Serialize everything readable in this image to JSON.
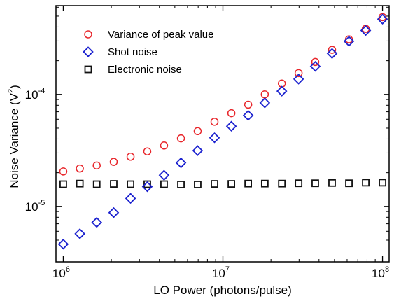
{
  "chart_data": {
    "type": "scatter",
    "xlabel": "LO Power (photons/pulse)",
    "ylabel": "Noise Variance (V",
    "ylabel_sup": "2",
    "ylabel_end": ")",
    "x_scale": "log",
    "y_scale": "log",
    "xlim": [
      900000,
      110000000
    ],
    "ylim": [
      3.2e-06,
      0.00062
    ],
    "x_ticks": [
      {
        "base": "10",
        "exp": "6",
        "value": 1000000
      },
      {
        "base": "10",
        "exp": "7",
        "value": 10000000
      },
      {
        "base": "10",
        "exp": "8",
        "value": 100000000
      }
    ],
    "y_ticks": [
      {
        "base": "10",
        "exp": "-5",
        "value": 1e-05
      },
      {
        "base": "10",
        "exp": "-4",
        "value": 0.0001
      }
    ],
    "grid": false,
    "legend_position": "top-left",
    "x": [
      1000000,
      1270000,
      1620000,
      2070000,
      2640000,
      3360000,
      4280000,
      5460000,
      6950000,
      8860000,
      11300000,
      14400000,
      18300000,
      23400000,
      29800000,
      37900000,
      48300000,
      61600000,
      78500000,
      100000000
    ],
    "series": [
      {
        "name": "Variance of peak value",
        "marker": "circle",
        "color": "#e8262b",
        "values": [
          2.05e-05,
          2.18e-05,
          2.32e-05,
          2.5e-05,
          2.78e-05,
          3.1e-05,
          3.5e-05,
          4.05e-05,
          4.7e-05,
          5.7e-05,
          6.8e-05,
          8.1e-05,
          0.0001,
          0.000125,
          0.000155,
          0.000195,
          0.00025,
          0.00031,
          0.000385,
          0.00049
        ]
      },
      {
        "name": "Shot noise",
        "marker": "diamond",
        "color": "#1c22cf",
        "values": [
          4.6e-06,
          5.7e-06,
          7.2e-06,
          8.8e-06,
          1.18e-05,
          1.5e-05,
          1.9e-05,
          2.45e-05,
          3.15e-05,
          4.1e-05,
          5.2e-05,
          6.5e-05,
          8.4e-05,
          0.000107,
          0.000137,
          0.000178,
          0.000232,
          0.000298,
          0.000372,
          0.00047
        ]
      },
      {
        "name": "Electronic noise",
        "marker": "square",
        "color": "#111111",
        "values": [
          1.58e-05,
          1.6e-05,
          1.58e-05,
          1.59e-05,
          1.58e-05,
          1.58e-05,
          1.58e-05,
          1.57e-05,
          1.57e-05,
          1.59e-05,
          1.59e-05,
          1.6e-05,
          1.6e-05,
          1.6e-05,
          1.61e-05,
          1.61e-05,
          1.62e-05,
          1.61e-05,
          1.63e-05,
          1.63e-05
        ]
      }
    ]
  }
}
